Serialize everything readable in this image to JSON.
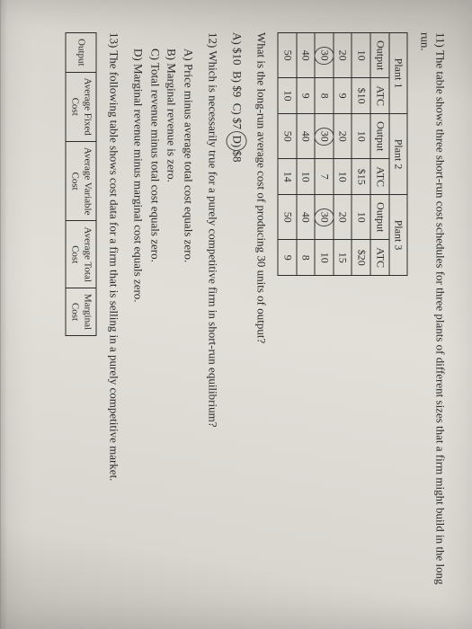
{
  "q11": {
    "num": "11)",
    "text": "The table shows three short-run cost schedules for three plants of different sizes that a firm might build in the long run."
  },
  "plants_table": {
    "headers": {
      "p1": "Plant 1",
      "p2": "Plant 2",
      "p3": "Plant 3",
      "output": "Output",
      "atc": "ATC"
    },
    "rows": [
      {
        "o1": "10",
        "a1": "$10",
        "o2": "10",
        "a2": "$15",
        "o3": "10",
        "a3": "$20"
      },
      {
        "o1": "20",
        "a1": "9",
        "o2": "20",
        "a2": "10",
        "o3": "20",
        "a3": "15"
      },
      {
        "o1": "30",
        "a1": "8",
        "o2": "30",
        "a2": "7",
        "o3": "30",
        "a3": "10"
      },
      {
        "o1": "40",
        "a1": "9",
        "o2": "40",
        "a2": "10",
        "o3": "40",
        "a3": "8"
      },
      {
        "o1": "50",
        "a1": "10",
        "o2": "50",
        "a2": "14",
        "o3": "50",
        "a3": "9"
      }
    ]
  },
  "q_lratc": {
    "text": "What is the long-run average cost of producing 30 units of output?",
    "opts": {
      "a": "A) $10",
      "b": "B) $9",
      "c": "C) $7",
      "d_prefix": "D)",
      "d_val": "$8"
    }
  },
  "q12": {
    "num": "12)",
    "text": "Which is necessarily true for a purely competitive firm in short-run equilibrium?",
    "opts": {
      "a": "A) Price minus average total cost equals zero.",
      "b": "B) Marginal revenue is zero.",
      "c": "C) Total revenue minus total cost equals zero.",
      "d": "D) Marginal revenue minus marginal cost equals zero."
    }
  },
  "q13": {
    "num": "13)",
    "text": "The following table shows cost data for a firm that is selling in a purely competitive market."
  },
  "cost_table": {
    "headers": {
      "output": "Output",
      "afc": "Average Fixed\nCost",
      "avc": "Average Variable\nCost",
      "atc": "Average Total\nCost",
      "mc": "Marginal\nCost"
    }
  }
}
